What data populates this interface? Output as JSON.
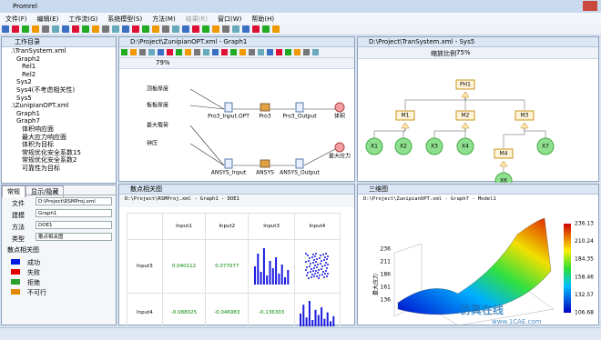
{
  "app": {
    "title": "Promrel",
    "menu": [
      "文件(F)",
      "编辑(E)",
      "工作流(G)",
      "系统模型(S)",
      "方法(M)",
      "结果(R)",
      "窗口(W)",
      "帮助(H)"
    ]
  },
  "tree": {
    "header": "工作目录",
    "items": [
      ".\\TranSystem.xml",
      "Graph2",
      "Rel1",
      "Rel2",
      "Sys2",
      "Sys4(不考虑相关性)",
      "Sys5",
      ".\\ZunipianOPT.xml",
      "Graph1",
      "Graph7",
      "体积响应面",
      "最大应力响应面",
      "体积为目标",
      "常规优化安全系数15",
      "常规优化安全系数2",
      "可靠性为目标"
    ]
  },
  "props": {
    "tabs": [
      "常规",
      "显示/隐藏"
    ],
    "rows": [
      [
        "文件",
        "D:\\Project\\RSMProj.xml"
      ],
      [
        "建模",
        "Graph1"
      ],
      [
        "方法",
        "DOE1"
      ],
      [
        "类型",
        "散点相关图"
      ]
    ],
    "legend_title": "散点相关图",
    "legend": [
      "成功",
      "失败",
      "拒绝",
      "不可行"
    ]
  },
  "graph1": {
    "title": "D:\\Project\\ZunipianOPT.xml - Graph1",
    "zoom": "79%",
    "nodes": [
      "顶板厚度",
      "板板厚度",
      "最大载荷",
      "钟压",
      "Pro3_Input.OPT",
      "Pro3",
      "Pro3_Output",
      "体积",
      "最大应力",
      "ANSYS_Input",
      "ANSYS",
      "ANSYS_Output"
    ]
  },
  "sys5": {
    "title": "D:\\Project\\TranSystem.xml - Sys5",
    "zoom_label": "缩放比例",
    "zoom": "75%",
    "nodes": [
      "PH1",
      "M1",
      "M2",
      "M3",
      "M4",
      "X1",
      "X2",
      "X3",
      "X4",
      "X7",
      "X6"
    ]
  },
  "scatter": {
    "window": "散点相关图",
    "title": "D:\\Project\\RSMProj.xml - Graph1 - DOE1",
    "columns": [
      "Input1",
      "Input2",
      "Input3",
      "Input4"
    ],
    "rows": [
      {
        "name": "Input3",
        "cells": [
          "0.040112",
          "0.077077"
        ]
      },
      {
        "name": "Input4",
        "cells": [
          "-0.088025",
          "-0.046983",
          "-0.136303"
        ]
      }
    ]
  },
  "surface": {
    "window": "三维图",
    "title": "D:\\Project\\ZunipianOPT.xml - Graph7 - Model1",
    "z_label": "最大应力",
    "colorbar_ticks": [
      236.13,
      210.24,
      184.35,
      158.46,
      132.57,
      106.68
    ],
    "zticks": [
      236,
      211,
      186,
      161,
      136
    ]
  },
  "watermark": [
    "仿真在线",
    "www.1CAE.com"
  ]
}
